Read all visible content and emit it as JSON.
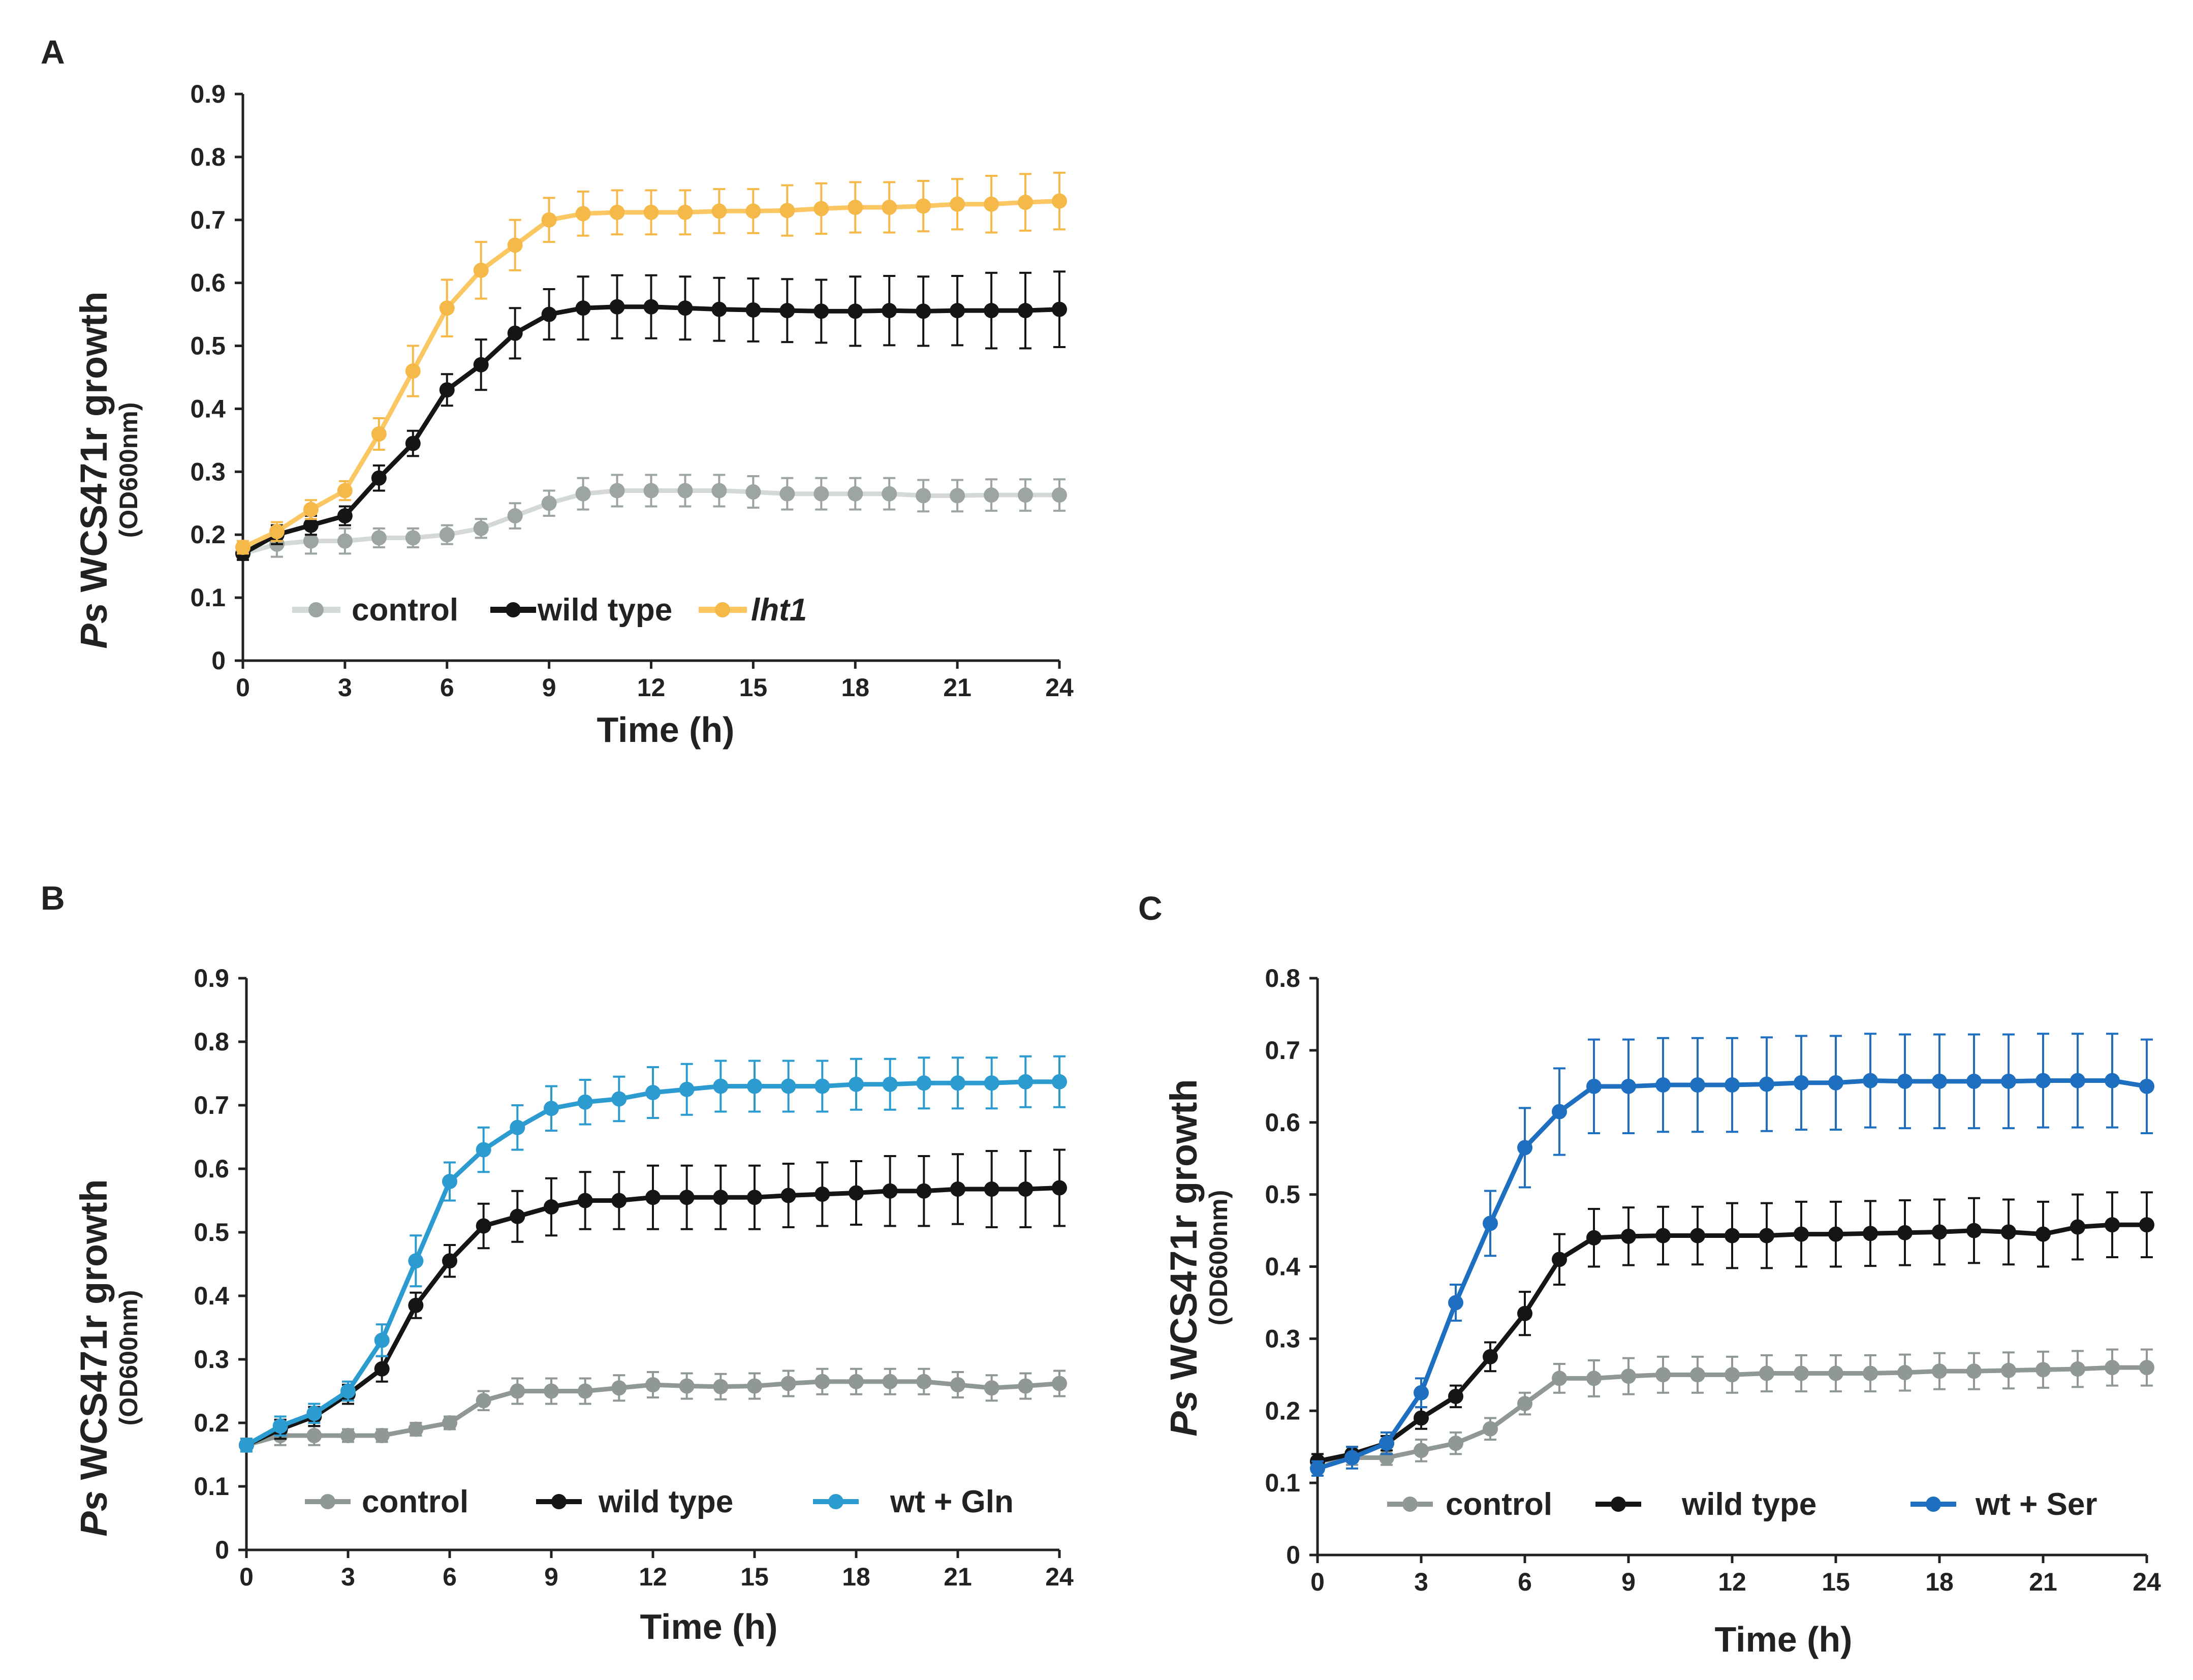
{
  "chart_data": [
    {
      "panel": "A",
      "type": "line",
      "title": "",
      "xlabel": "Time (h)",
      "ylabel_prefix": "Ps",
      "ylabel_main": " WCS471r growth",
      "ylabel_sub": "(OD600nm)",
      "xlim": [
        0,
        24
      ],
      "ylim": [
        0,
        0.9
      ],
      "xticks": [
        0,
        3,
        6,
        9,
        12,
        15,
        18,
        21,
        24
      ],
      "xtick_labels": [
        "0",
        "3",
        "6",
        "9",
        "12",
        "15",
        "18",
        "21",
        "24"
      ],
      "yticks": [
        0,
        0.1,
        0.2,
        0.3,
        0.4,
        0.5,
        0.6,
        0.7,
        0.8,
        0.9
      ],
      "ytick_labels": [
        "0",
        "0.1",
        "0.2",
        "0.3",
        "0.4",
        "0.5",
        "0.6",
        "0.7",
        "0.8",
        "0.9"
      ],
      "legend_position": "bottom-left",
      "x": [
        0,
        1,
        2,
        3,
        4,
        5,
        6,
        7,
        8,
        9,
        10,
        11,
        12,
        13,
        14,
        15,
        16,
        17,
        18,
        19,
        20,
        21,
        22,
        23,
        24
      ],
      "series": [
        {
          "name": "control",
          "italic": false,
          "color": "#9ca5a2",
          "line_color": "#d4d8d6",
          "values": [
            0.17,
            0.185,
            0.19,
            0.19,
            0.195,
            0.195,
            0.2,
            0.21,
            0.23,
            0.25,
            0.265,
            0.27,
            0.27,
            0.27,
            0.27,
            0.268,
            0.265,
            0.265,
            0.265,
            0.265,
            0.262,
            0.262,
            0.263,
            0.263,
            0.263
          ],
          "errors": [
            0.01,
            0.02,
            0.02,
            0.02,
            0.015,
            0.015,
            0.015,
            0.015,
            0.02,
            0.02,
            0.025,
            0.025,
            0.025,
            0.025,
            0.025,
            0.025,
            0.025,
            0.025,
            0.025,
            0.025,
            0.025,
            0.025,
            0.025,
            0.025,
            0.025
          ]
        },
        {
          "name": "wild type",
          "italic": false,
          "color": "#151515",
          "line_color": "#151515",
          "values": [
            0.17,
            0.2,
            0.215,
            0.23,
            0.29,
            0.345,
            0.43,
            0.47,
            0.52,
            0.55,
            0.56,
            0.562,
            0.562,
            0.56,
            0.558,
            0.557,
            0.556,
            0.555,
            0.555,
            0.556,
            0.555,
            0.556,
            0.556,
            0.556,
            0.558
          ],
          "errors": [
            0.01,
            0.015,
            0.015,
            0.015,
            0.02,
            0.02,
            0.025,
            0.04,
            0.04,
            0.04,
            0.05,
            0.05,
            0.05,
            0.05,
            0.05,
            0.05,
            0.05,
            0.05,
            0.055,
            0.055,
            0.055,
            0.055,
            0.06,
            0.06,
            0.06
          ]
        },
        {
          "name": "lht1",
          "italic": true,
          "color": "#f5b94a",
          "line_color": "#fbc763",
          "values": [
            0.18,
            0.205,
            0.24,
            0.27,
            0.36,
            0.46,
            0.56,
            0.62,
            0.66,
            0.7,
            0.71,
            0.712,
            0.712,
            0.712,
            0.714,
            0.714,
            0.715,
            0.718,
            0.72,
            0.72,
            0.722,
            0.725,
            0.725,
            0.728,
            0.73
          ],
          "errors": [
            0.01,
            0.015,
            0.015,
            0.015,
            0.025,
            0.04,
            0.045,
            0.045,
            0.04,
            0.035,
            0.035,
            0.035,
            0.035,
            0.035,
            0.035,
            0.035,
            0.04,
            0.04,
            0.04,
            0.04,
            0.04,
            0.04,
            0.045,
            0.045,
            0.045
          ]
        }
      ]
    },
    {
      "panel": "B",
      "type": "line",
      "title": "",
      "xlabel": "Time (h)",
      "ylabel_prefix": "Ps",
      "ylabel_main": " WCS471r growth",
      "ylabel_sub": "(OD600nm)",
      "xlim": [
        0,
        24
      ],
      "ylim": [
        0,
        0.9
      ],
      "xticks": [
        0,
        3,
        6,
        9,
        12,
        15,
        18,
        21,
        24
      ],
      "xtick_labels": [
        "0",
        "3",
        "6",
        "9",
        "12",
        "15",
        "18",
        "21",
        "24"
      ],
      "yticks": [
        0,
        0.1,
        0.2,
        0.3,
        0.4,
        0.5,
        0.6,
        0.7,
        0.8,
        0.9
      ],
      "ytick_labels": [
        "0",
        "0.1",
        "0.2",
        "0.3",
        "0.4",
        "0.5",
        "0.6",
        "0.7",
        "0.8",
        "0.9"
      ],
      "legend_position": "bottom",
      "x": [
        0,
        1,
        2,
        3,
        4,
        5,
        6,
        7,
        8,
        9,
        10,
        11,
        12,
        13,
        14,
        15,
        16,
        17,
        18,
        19,
        20,
        21,
        22,
        23,
        24
      ],
      "series": [
        {
          "name": "control",
          "italic": false,
          "color": "#8f9895",
          "line_color": "#8f9895",
          "values": [
            0.165,
            0.18,
            0.18,
            0.18,
            0.18,
            0.19,
            0.2,
            0.235,
            0.25,
            0.25,
            0.25,
            0.255,
            0.26,
            0.258,
            0.257,
            0.258,
            0.262,
            0.265,
            0.265,
            0.265,
            0.265,
            0.26,
            0.255,
            0.258,
            0.262
          ],
          "errors": [
            0.01,
            0.015,
            0.015,
            0.01,
            0.01,
            0.01,
            0.01,
            0.015,
            0.02,
            0.02,
            0.02,
            0.02,
            0.02,
            0.02,
            0.02,
            0.02,
            0.02,
            0.02,
            0.02,
            0.02,
            0.02,
            0.02,
            0.02,
            0.02,
            0.02
          ]
        },
        {
          "name": "wild type",
          "italic": false,
          "color": "#151515",
          "line_color": "#151515",
          "values": [
            0.165,
            0.19,
            0.21,
            0.245,
            0.285,
            0.385,
            0.455,
            0.51,
            0.525,
            0.54,
            0.55,
            0.55,
            0.555,
            0.555,
            0.555,
            0.555,
            0.558,
            0.56,
            0.562,
            0.565,
            0.565,
            0.568,
            0.568,
            0.568,
            0.57
          ],
          "errors": [
            0.01,
            0.015,
            0.015,
            0.015,
            0.02,
            0.02,
            0.025,
            0.035,
            0.04,
            0.045,
            0.045,
            0.045,
            0.05,
            0.05,
            0.05,
            0.05,
            0.05,
            0.05,
            0.05,
            0.055,
            0.055,
            0.055,
            0.06,
            0.06,
            0.06
          ]
        },
        {
          "name": "wt + Gln",
          "italic": false,
          "color": "#2b9bd0",
          "line_color": "#2b9bd0",
          "values": [
            0.165,
            0.195,
            0.215,
            0.25,
            0.33,
            0.455,
            0.58,
            0.63,
            0.665,
            0.695,
            0.705,
            0.71,
            0.72,
            0.725,
            0.73,
            0.73,
            0.73,
            0.73,
            0.733,
            0.733,
            0.735,
            0.735,
            0.735,
            0.737,
            0.737
          ],
          "errors": [
            0.01,
            0.015,
            0.015,
            0.015,
            0.025,
            0.04,
            0.03,
            0.035,
            0.035,
            0.035,
            0.035,
            0.035,
            0.04,
            0.04,
            0.04,
            0.04,
            0.04,
            0.04,
            0.04,
            0.04,
            0.04,
            0.04,
            0.04,
            0.04,
            0.04
          ]
        }
      ]
    },
    {
      "panel": "C",
      "type": "line",
      "title": "",
      "xlabel": "Time (h)",
      "ylabel_prefix": "Ps",
      "ylabel_main": " WCS471r growth",
      "ylabel_sub": "(OD600nm)",
      "xlim": [
        0,
        24
      ],
      "ylim": [
        0,
        0.8
      ],
      "xticks": [
        0,
        3,
        6,
        9,
        12,
        15,
        18,
        21,
        24
      ],
      "xtick_labels": [
        "0",
        "3",
        "6",
        "9",
        "12",
        "15",
        "18",
        "21",
        "24"
      ],
      "yticks": [
        0,
        0.1,
        0.2,
        0.3,
        0.4,
        0.5,
        0.6,
        0.7,
        0.8
      ],
      "ytick_labels": [
        "0",
        "0.1",
        "0.2",
        "0.3",
        "0.4",
        "0.5",
        "0.6",
        "0.7",
        "0.8"
      ],
      "legend_position": "bottom",
      "x": [
        0,
        1,
        2,
        3,
        4,
        5,
        6,
        7,
        8,
        9,
        10,
        11,
        12,
        13,
        14,
        15,
        16,
        17,
        18,
        19,
        20,
        21,
        22,
        23,
        24
      ],
      "series": [
        {
          "name": "control",
          "italic": false,
          "color": "#8f9895",
          "line_color": "#8f9895",
          "values": [
            0.13,
            0.135,
            0.135,
            0.145,
            0.155,
            0.175,
            0.21,
            0.245,
            0.245,
            0.248,
            0.25,
            0.25,
            0.25,
            0.252,
            0.252,
            0.252,
            0.252,
            0.253,
            0.255,
            0.255,
            0.256,
            0.257,
            0.258,
            0.26,
            0.26
          ],
          "errors": [
            0.01,
            0.01,
            0.01,
            0.015,
            0.015,
            0.015,
            0.015,
            0.02,
            0.025,
            0.025,
            0.025,
            0.025,
            0.025,
            0.025,
            0.025,
            0.025,
            0.025,
            0.025,
            0.025,
            0.025,
            0.025,
            0.025,
            0.025,
            0.025,
            0.025
          ]
        },
        {
          "name": "wild type",
          "italic": false,
          "color": "#151515",
          "line_color": "#151515",
          "values": [
            0.13,
            0.14,
            0.155,
            0.19,
            0.22,
            0.275,
            0.335,
            0.41,
            0.44,
            0.442,
            0.443,
            0.443,
            0.443,
            0.443,
            0.445,
            0.445,
            0.446,
            0.447,
            0.448,
            0.45,
            0.448,
            0.445,
            0.455,
            0.458,
            0.458
          ],
          "errors": [
            0.01,
            0.01,
            0.01,
            0.015,
            0.015,
            0.02,
            0.03,
            0.035,
            0.04,
            0.04,
            0.04,
            0.04,
            0.045,
            0.045,
            0.045,
            0.045,
            0.045,
            0.045,
            0.045,
            0.045,
            0.045,
            0.045,
            0.045,
            0.045,
            0.045
          ]
        },
        {
          "name": "wt + Ser",
          "italic": false,
          "color": "#1f6fc0",
          "line_color": "#1f6fc0",
          "values": [
            0.12,
            0.135,
            0.155,
            0.225,
            0.35,
            0.46,
            0.565,
            0.615,
            0.65,
            0.65,
            0.652,
            0.652,
            0.652,
            0.653,
            0.655,
            0.655,
            0.658,
            0.657,
            0.657,
            0.657,
            0.657,
            0.658,
            0.658,
            0.658,
            0.65
          ],
          "errors": [
            0.01,
            0.015,
            0.015,
            0.02,
            0.025,
            0.045,
            0.055,
            0.06,
            0.065,
            0.065,
            0.065,
            0.065,
            0.065,
            0.065,
            0.065,
            0.065,
            0.065,
            0.065,
            0.065,
            0.065,
            0.065,
            0.065,
            0.065,
            0.065,
            0.065
          ]
        }
      ]
    }
  ]
}
